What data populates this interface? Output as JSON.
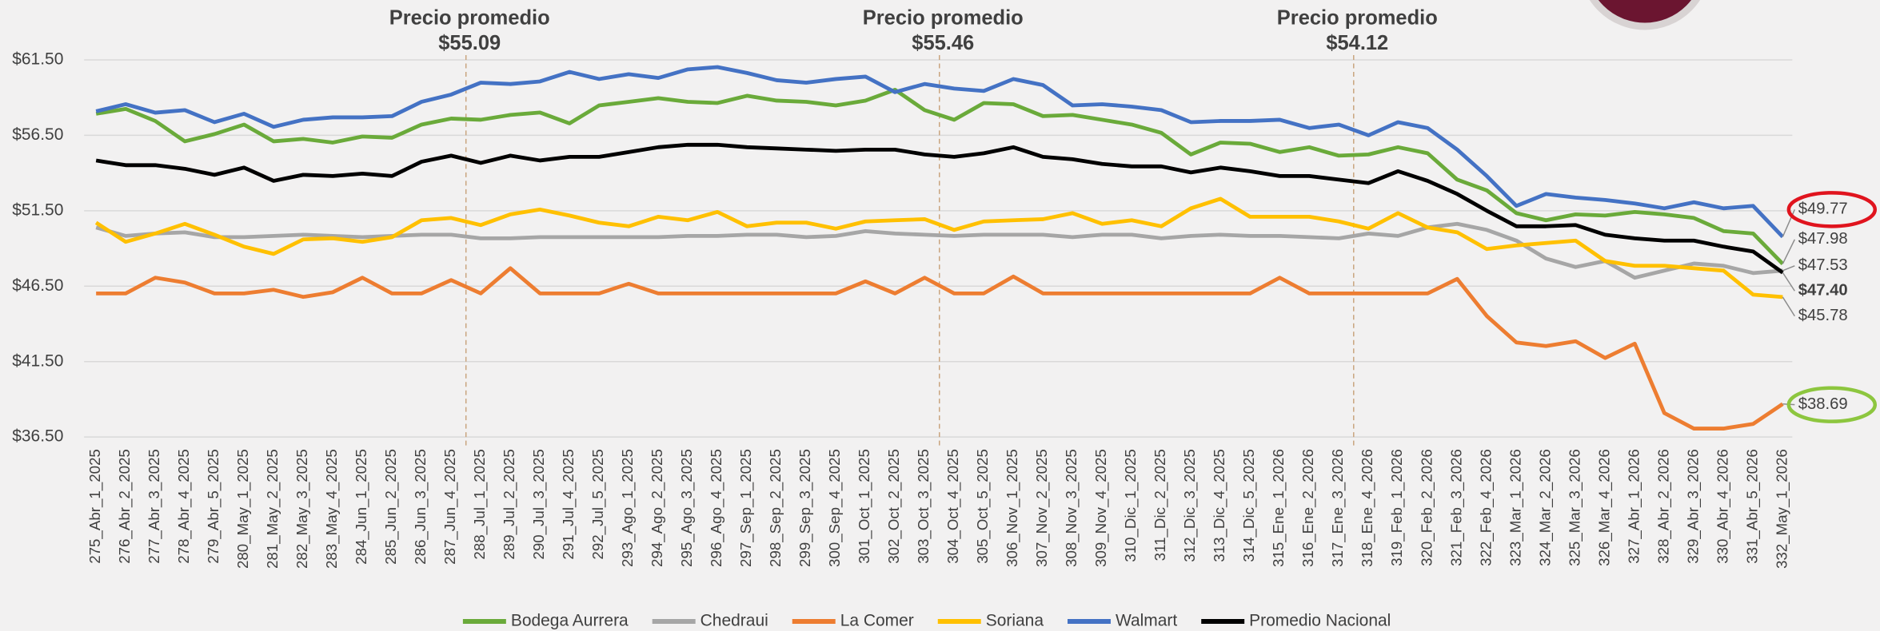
{
  "chart_data": {
    "type": "line",
    "categories": [
      "275_Abr_1_2025",
      "276_Abr_2_2025",
      "277_Abr_3_2025",
      "278_Abr_4_2025",
      "279_Abr_5_2025",
      "280_May_1_2025",
      "281_May_2_2025",
      "282_May_3_2025",
      "283_May_4_2025",
      "284_Jun_1_2025",
      "285_Jun_2_2025",
      "286_Jun_3_2025",
      "287_Jun_4_2025",
      "288_Jul_1_2025",
      "289_Jul_2_2025",
      "290_Jul_3_2025",
      "291_Jul_4_2025",
      "292_Jul_5_2025",
      "293_Ago_1_2025",
      "294_Ago_2_2025",
      "295_Ago_3_2025",
      "296_Ago_4_2025",
      "297_Sep_1_2025",
      "298_Sep_2_2025",
      "299_Sep_3_2025",
      "300_Sep_4_2025",
      "301_Oct_1_2025",
      "302_Oct_2_2025",
      "303_Oct_3_2025",
      "304_Oct_4_2025",
      "305_Oct_5_2025",
      "306_Nov_1_2025",
      "307_Nov_2_2025",
      "308_Nov_3_2025",
      "309_Nov_4_2025",
      "310_Dic_1_2025",
      "311_Dic_2_2025",
      "312_Dic_3_2025",
      "313_Dic_4_2025",
      "314_Dic_5_2025",
      "315_Ene_1_2026",
      "316_Ene_2_2026",
      "317_Ene_3_2026",
      "318_Ene_4_2026",
      "319_Feb_1_2026",
      "320_Feb_2_2026",
      "321_Feb_3_2026",
      "322_Feb_4_2026",
      "323_Mar_1_2026",
      "324_Mar_2_2026",
      "325_Mar_3_2026",
      "326_Mar_4_2026",
      "327_Abr_1_2026",
      "328_Abr_2_2026",
      "329_Abr_3_2026",
      "330_Abr_4_2026",
      "331_Abr_5_2026",
      "332_May_1_2026"
    ],
    "series": [
      {
        "name": "Bodega Aurrera",
        "color": "#6aaa3a",
        "values": [
          57.93,
          58.25,
          57.45,
          56.1,
          56.58,
          57.21,
          56.1,
          56.26,
          56.02,
          56.42,
          56.34,
          57.21,
          57.61,
          57.53,
          57.85,
          58.01,
          57.29,
          58.48,
          58.72,
          58.96,
          58.72,
          58.64,
          59.12,
          58.8,
          58.72,
          58.48,
          58.8,
          59.52,
          58.17,
          57.53,
          58.64,
          58.56,
          57.77,
          57.85,
          57.53,
          57.21,
          56.66,
          55.23,
          56.02,
          55.94,
          55.39,
          55.71,
          55.15,
          55.23,
          55.71,
          55.31,
          53.56,
          52.85,
          51.34,
          50.87,
          51.26,
          51.18,
          51.42,
          51.26,
          51.02,
          50.15,
          49.99,
          47.98
        ],
        "value_labels": [
          null,
          null,
          null,
          null,
          null,
          null,
          null,
          null,
          null,
          null,
          null,
          null,
          null,
          null,
          null,
          null,
          null,
          null,
          null,
          null,
          null,
          null,
          null,
          null,
          null,
          null,
          null,
          null,
          null,
          null,
          null,
          null,
          null,
          null,
          null,
          null,
          null,
          null,
          null,
          null,
          null,
          null,
          null,
          null,
          null,
          null,
          null,
          null,
          null,
          null,
          null,
          null,
          null,
          null,
          null,
          null,
          null,
          "$47.98"
        ]
      },
      {
        "name": "Chedraui",
        "color": "#a6a6a6",
        "values": [
          50.39,
          49.83,
          49.99,
          50.07,
          49.75,
          49.75,
          49.83,
          49.91,
          49.83,
          49.75,
          49.83,
          49.91,
          49.91,
          49.67,
          49.67,
          49.75,
          49.75,
          49.75,
          49.75,
          49.75,
          49.83,
          49.83,
          49.91,
          49.91,
          49.75,
          49.83,
          50.15,
          49.99,
          49.91,
          49.83,
          49.91,
          49.91,
          49.91,
          49.75,
          49.91,
          49.91,
          49.67,
          49.83,
          49.91,
          49.83,
          49.83,
          49.75,
          49.67,
          49.99,
          49.83,
          50.39,
          50.63,
          50.23,
          49.52,
          48.33,
          47.77,
          48.17,
          47.06,
          47.53,
          48.0,
          47.85,
          47.37,
          47.53
        ],
        "value_labels": [
          null,
          null,
          null,
          null,
          null,
          null,
          null,
          null,
          null,
          null,
          null,
          null,
          null,
          null,
          null,
          null,
          null,
          null,
          null,
          null,
          null,
          null,
          null,
          null,
          null,
          null,
          null,
          null,
          null,
          null,
          null,
          null,
          null,
          null,
          null,
          null,
          null,
          null,
          null,
          null,
          null,
          null,
          null,
          null,
          null,
          null,
          null,
          null,
          null,
          null,
          null,
          null,
          null,
          null,
          null,
          null,
          null,
          "$47.53"
        ]
      },
      {
        "name": "La Comer",
        "color": "#ed7d31",
        "label_circle": "#8dc63f",
        "values": [
          46.02,
          46.02,
          47.06,
          46.74,
          46.02,
          46.02,
          46.26,
          45.79,
          46.1,
          47.06,
          46.02,
          46.02,
          46.9,
          46.02,
          47.69,
          46.02,
          46.02,
          46.02,
          46.66,
          46.02,
          46.02,
          46.02,
          46.02,
          46.02,
          46.02,
          46.02,
          46.82,
          46.02,
          47.06,
          46.02,
          46.02,
          47.14,
          46.02,
          46.02,
          46.02,
          46.02,
          46.02,
          46.02,
          46.02,
          46.02,
          47.06,
          46.02,
          46.02,
          46.02,
          46.02,
          46.02,
          46.98,
          44.52,
          42.77,
          42.53,
          42.85,
          41.74,
          42.69,
          38.09,
          37.06,
          37.06,
          37.37,
          38.69
        ],
        "value_labels": [
          null,
          null,
          null,
          null,
          null,
          null,
          null,
          null,
          null,
          null,
          null,
          null,
          null,
          null,
          null,
          null,
          null,
          null,
          null,
          null,
          null,
          null,
          null,
          null,
          null,
          null,
          null,
          null,
          null,
          null,
          null,
          null,
          null,
          null,
          null,
          null,
          null,
          null,
          null,
          null,
          null,
          null,
          null,
          null,
          null,
          null,
          null,
          null,
          null,
          null,
          null,
          null,
          null,
          null,
          null,
          null,
          null,
          "$38.69"
        ]
      },
      {
        "name": "Soriana",
        "color": "#ffc000",
        "values": [
          50.71,
          49.44,
          49.99,
          50.63,
          49.91,
          49.12,
          48.64,
          49.6,
          49.67,
          49.44,
          49.75,
          50.87,
          51.02,
          50.55,
          51.26,
          51.58,
          51.18,
          50.71,
          50.47,
          51.1,
          50.87,
          51.42,
          50.47,
          50.71,
          50.71,
          50.31,
          50.79,
          50.87,
          50.94,
          50.23,
          50.79,
          50.87,
          50.94,
          51.34,
          50.63,
          50.87,
          50.47,
          51.66,
          52.29,
          51.1,
          51.1,
          51.1,
          50.79,
          50.31,
          51.34,
          50.39,
          50.07,
          48.96,
          49.2,
          49.36,
          49.52,
          48.17,
          47.85,
          47.85,
          47.69,
          47.53,
          45.94,
          45.78
        ],
        "value_labels": [
          null,
          null,
          null,
          null,
          null,
          null,
          null,
          null,
          null,
          null,
          null,
          null,
          null,
          null,
          null,
          null,
          null,
          null,
          null,
          null,
          null,
          null,
          null,
          null,
          null,
          null,
          null,
          null,
          null,
          null,
          null,
          null,
          null,
          null,
          null,
          null,
          null,
          null,
          null,
          null,
          null,
          null,
          null,
          null,
          null,
          null,
          null,
          null,
          null,
          null,
          null,
          null,
          null,
          null,
          null,
          null,
          null,
          "$45.78"
        ]
      },
      {
        "name": "Walmart",
        "color": "#4472c4",
        "label_circle": "#e0141e",
        "values": [
          58.09,
          58.56,
          58.0,
          58.17,
          57.37,
          57.93,
          57.06,
          57.53,
          57.69,
          57.69,
          57.77,
          58.72,
          59.2,
          59.99,
          59.9,
          60.07,
          60.7,
          60.23,
          60.55,
          60.3,
          60.87,
          61.02,
          60.63,
          60.15,
          59.99,
          60.23,
          60.39,
          59.36,
          59.9,
          59.6,
          59.44,
          60.23,
          59.83,
          58.48,
          58.56,
          58.4,
          58.17,
          57.37,
          57.45,
          57.45,
          57.53,
          56.98,
          57.21,
          56.5,
          57.37,
          56.98,
          55.55,
          53.8,
          51.82,
          52.61,
          52.37,
          52.21,
          51.98,
          51.66,
          52.06,
          51.66,
          51.82,
          49.77
        ],
        "value_labels": [
          null,
          null,
          null,
          null,
          null,
          null,
          null,
          null,
          null,
          null,
          null,
          null,
          null,
          null,
          null,
          null,
          null,
          null,
          null,
          null,
          null,
          null,
          null,
          null,
          null,
          null,
          null,
          null,
          null,
          null,
          null,
          null,
          null,
          null,
          null,
          null,
          null,
          null,
          null,
          null,
          null,
          null,
          null,
          null,
          null,
          null,
          null,
          null,
          null,
          null,
          null,
          null,
          null,
          null,
          null,
          null,
          null,
          "$49.77"
        ]
      },
      {
        "name": "Promedio Nacional",
        "color": "#000000",
        "values": [
          54.83,
          54.52,
          54.52,
          54.28,
          53.88,
          54.36,
          53.48,
          53.88,
          53.8,
          53.96,
          53.8,
          54.75,
          55.15,
          54.67,
          55.15,
          54.83,
          55.07,
          55.07,
          55.39,
          55.71,
          55.87,
          55.87,
          55.71,
          55.63,
          55.55,
          55.47,
          55.55,
          55.55,
          55.23,
          55.07,
          55.31,
          55.71,
          55.07,
          54.91,
          54.6,
          54.44,
          54.44,
          54.04,
          54.36,
          54.12,
          53.8,
          53.8,
          53.56,
          53.33,
          54.12,
          53.48,
          52.61,
          51.5,
          50.47,
          50.47,
          50.55,
          49.91,
          49.67,
          49.52,
          49.52,
          49.12,
          48.8,
          47.4
        ],
        "value_labels": [
          null,
          null,
          null,
          null,
          null,
          null,
          null,
          null,
          null,
          null,
          null,
          null,
          null,
          null,
          null,
          null,
          null,
          null,
          null,
          null,
          null,
          null,
          null,
          null,
          null,
          null,
          null,
          null,
          null,
          null,
          null,
          null,
          null,
          null,
          null,
          null,
          null,
          null,
          null,
          null,
          null,
          null,
          null,
          null,
          null,
          null,
          null,
          null,
          null,
          null,
          null,
          null,
          null,
          null,
          null,
          null,
          null,
          "$47.40"
        ]
      }
    ],
    "annotations": [
      {
        "title": "Precio promedio",
        "value": 55.09,
        "label": "$55.09"
      },
      {
        "title": "Precio promedio",
        "value": 55.46,
        "label": "$55.46"
      },
      {
        "title": "Precio promedio",
        "value": 54.12,
        "label": "$54.12"
      }
    ],
    "ylim": [
      36.5,
      61.5
    ],
    "yticks": [
      {
        "value": 36.5,
        "label": "$36.50"
      },
      {
        "value": 41.5,
        "label": "$41.50"
      },
      {
        "value": 46.5,
        "label": "$46.50"
      },
      {
        "value": 51.5,
        "label": "$51.50"
      },
      {
        "value": 56.5,
        "label": "$56.50"
      },
      {
        "value": 61.5,
        "label": "$61.50"
      }
    ],
    "grid": true
  }
}
